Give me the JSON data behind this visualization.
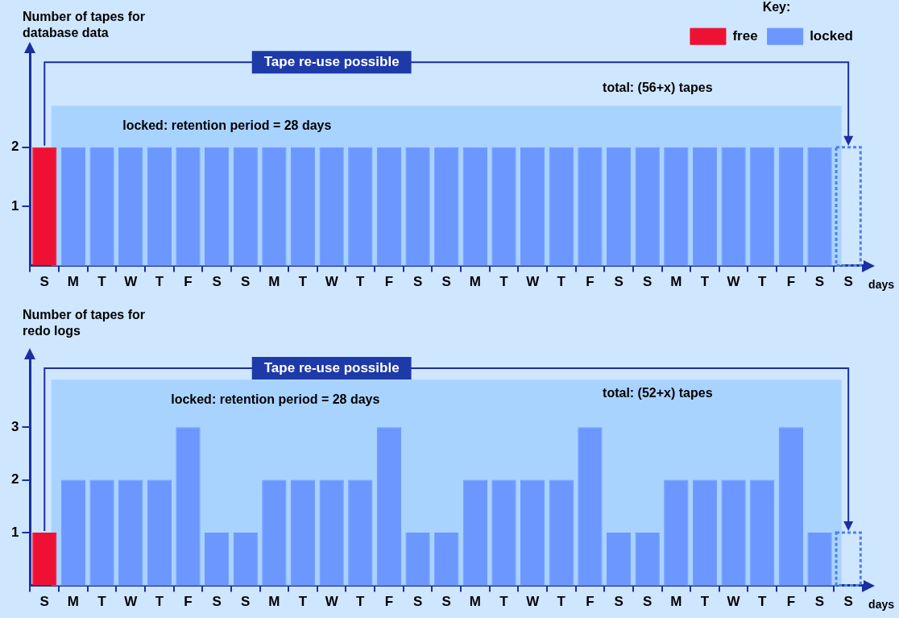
{
  "chart_data": [
    {
      "type": "bar",
      "ylabel": "Number of tapes for database data",
      "xlabel": "days",
      "legend_title": "Key:",
      "legend": "top right",
      "grid": false,
      "categories": [
        "S",
        "M",
        "T",
        "W",
        "T",
        "F",
        "S",
        "S",
        "M",
        "T",
        "W",
        "T",
        "F",
        "S",
        "S",
        "M",
        "T",
        "W",
        "T",
        "F",
        "S",
        "S",
        "M",
        "T",
        "W",
        "T",
        "F",
        "S",
        "S"
      ],
      "series": [
        {
          "name": "free",
          "color": "#ee1133",
          "values": [
            2,
            null,
            null,
            null,
            null,
            null,
            null,
            null,
            null,
            null,
            null,
            null,
            null,
            null,
            null,
            null,
            null,
            null,
            null,
            null,
            null,
            null,
            null,
            null,
            null,
            null,
            null,
            null,
            null
          ]
        },
        {
          "name": "locked",
          "color": "#6b97ff",
          "values": [
            null,
            2,
            2,
            2,
            2,
            2,
            2,
            2,
            2,
            2,
            2,
            2,
            2,
            2,
            2,
            2,
            2,
            2,
            2,
            2,
            2,
            2,
            2,
            2,
            2,
            2,
            2,
            2,
            null
          ]
        },
        {
          "color": "#4f7fe8",
          "line_style": "dashed",
          "values": [
            null,
            null,
            null,
            null,
            null,
            null,
            null,
            null,
            null,
            null,
            null,
            null,
            null,
            null,
            null,
            null,
            null,
            null,
            null,
            null,
            null,
            null,
            null,
            null,
            null,
            null,
            null,
            null,
            2
          ]
        }
      ],
      "ylim": [
        0,
        3.6
      ],
      "yticks": [
        1,
        2
      ],
      "bands": [
        {
          "axis": "y",
          "from": 0,
          "to": 2.7,
          "label": "locked: retention period = 28 days",
          "color": "#a9d3ff"
        }
      ],
      "annotations": [
        "Tape re-use possible",
        "total: (56+x) tapes"
      ]
    },
    {
      "type": "bar",
      "ylabel": "Number of tapes for redo logs",
      "xlabel": "days",
      "grid": false,
      "categories": [
        "S",
        "M",
        "T",
        "W",
        "T",
        "F",
        "S",
        "S",
        "M",
        "T",
        "W",
        "T",
        "F",
        "S",
        "S",
        "M",
        "T",
        "W",
        "T",
        "F",
        "S",
        "S",
        "M",
        "T",
        "W",
        "T",
        "F",
        "S",
        "S"
      ],
      "series": [
        {
          "color": "#ee1133",
          "values": [
            1,
            null,
            null,
            null,
            null,
            null,
            null,
            null,
            null,
            null,
            null,
            null,
            null,
            null,
            null,
            null,
            null,
            null,
            null,
            null,
            null,
            null,
            null,
            null,
            null,
            null,
            null,
            null,
            null
          ]
        },
        {
          "color": "#6b97ff",
          "values": [
            null,
            2,
            2,
            2,
            2,
            3,
            1,
            1,
            2,
            2,
            2,
            2,
            3,
            1,
            1,
            2,
            2,
            2,
            2,
            3,
            1,
            1,
            2,
            2,
            2,
            2,
            3,
            1,
            null
          ]
        },
        {
          "color": "#4f7fe8",
          "line_style": "dashed",
          "values": [
            null,
            null,
            null,
            null,
            null,
            null,
            null,
            null,
            null,
            null,
            null,
            null,
            null,
            null,
            null,
            null,
            null,
            null,
            null,
            null,
            null,
            null,
            null,
            null,
            null,
            null,
            null,
            null,
            1
          ]
        }
      ],
      "ylim": [
        0,
        4.3
      ],
      "yticks": [
        1,
        2,
        3
      ],
      "bands": [
        {
          "axis": "y",
          "from": 0,
          "to": 3.9,
          "label": "locked: retention period = 28 days",
          "color": "#a9d3ff"
        }
      ],
      "annotations": [
        "Tape re-use possible",
        "total: (52+x) tapes"
      ]
    }
  ]
}
